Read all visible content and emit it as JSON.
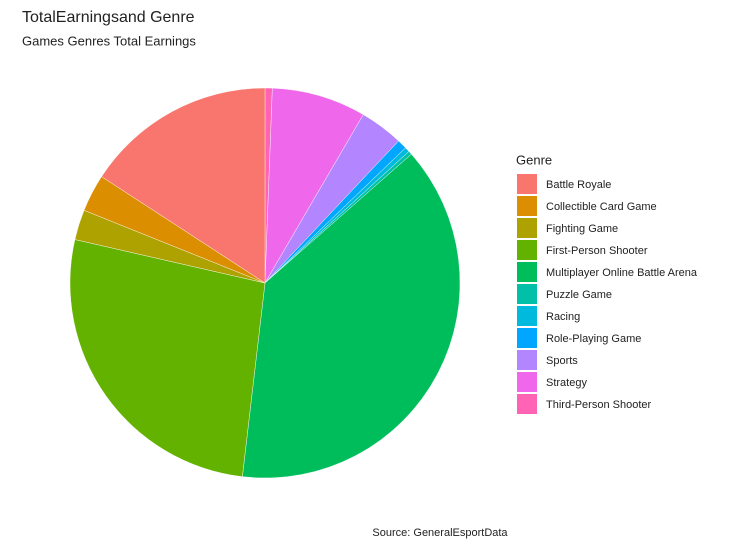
{
  "chart_data": {
    "type": "pie",
    "title": "TotalEarningsand Genre",
    "subtitle": "Games Genres Total Earnings",
    "caption": "Source: GeneralEsportData",
    "legend_title": "Genre",
    "categories": [
      "Battle Royale",
      "Collectible Card Game",
      "Fighting Game",
      "First-Person Shooter",
      "Multiplayer Online Battle Arena",
      "Puzzle Game",
      "Racing",
      "Role-Playing Game",
      "Sports",
      "Strategy",
      "Third-Person Shooter"
    ],
    "values": [
      15.8,
      3.1,
      2.5,
      26.7,
      38.3,
      0.3,
      0.4,
      0.8,
      3.6,
      7.8,
      0.6
    ],
    "colors": [
      "#F8766D",
      "#DB8E00",
      "#AEA200",
      "#64B200",
      "#00BD5C",
      "#00C1A7",
      "#00BADE",
      "#00A6FF",
      "#B385FF",
      "#EF67EB",
      "#FF63B6"
    ],
    "legend": "right"
  }
}
